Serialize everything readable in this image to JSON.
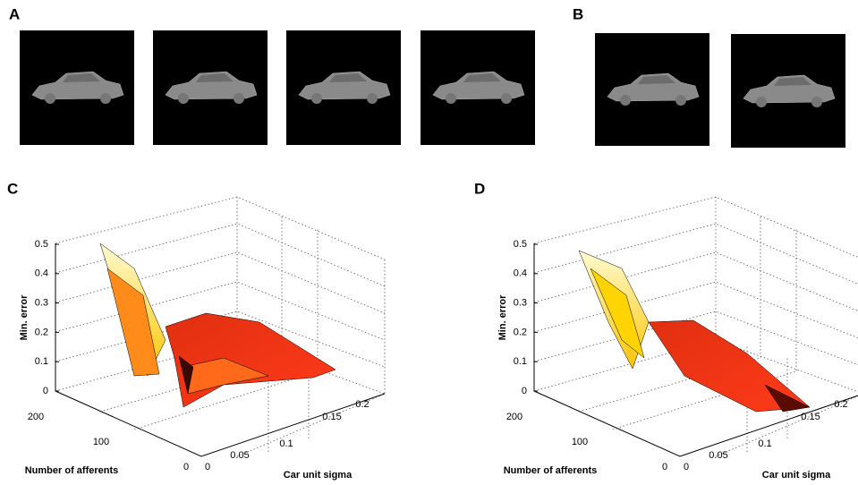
{
  "panel_labels": [
    "A",
    "B",
    "C",
    "D"
  ],
  "plots": [
    {
      "z_label": "Min. error",
      "z_ticks": [
        "0",
        "0.1",
        "0.2",
        "0.3",
        "0.4",
        "0.5"
      ],
      "afferents_label": "Number of afferents",
      "afferents_ticks": [
        "200",
        "100",
        "0"
      ],
      "sigma_label": "Car unit sigma",
      "sigma_ticks": [
        "0",
        "0.05",
        "0.1",
        "0.15",
        "0.2"
      ]
    },
    {
      "z_label": "Min. error",
      "z_ticks": [
        "0",
        "0.1",
        "0.2",
        "0.3",
        "0.4",
        "0.5"
      ],
      "afferents_label": "Number of afferents",
      "afferents_ticks": [
        "200",
        "100",
        "0"
      ],
      "sigma_label": "Car unit sigma",
      "sigma_ticks": [
        "0",
        "0.05",
        "0.1",
        "0.15",
        "0.2"
      ]
    }
  ]
}
